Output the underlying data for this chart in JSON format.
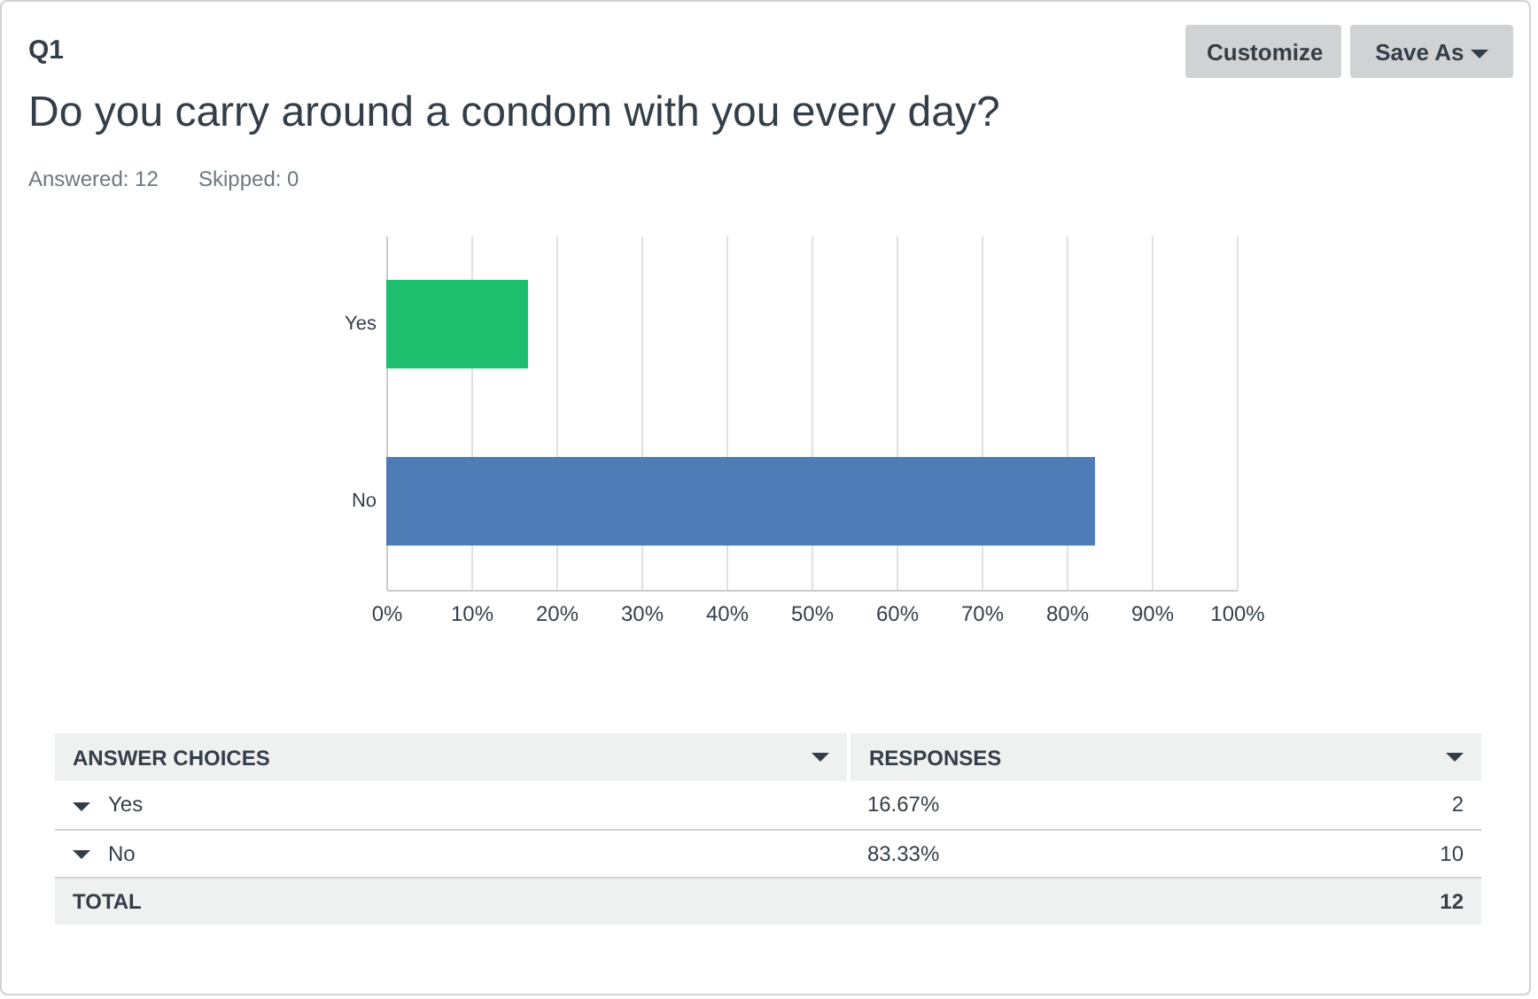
{
  "chart_data": {
    "type": "bar",
    "orientation": "horizontal",
    "title": "Do you carry around a condom with you every day?",
    "categories": [
      "Yes",
      "No"
    ],
    "values": [
      16.67,
      83.33
    ],
    "colors": [
      "#1dbf6e",
      "#4e7cb6"
    ],
    "xlim": [
      0,
      100
    ],
    "xticks": [
      {
        "value": 0,
        "label": "0%"
      },
      {
        "value": 10,
        "label": "10%"
      },
      {
        "value": 20,
        "label": "20%"
      },
      {
        "value": 30,
        "label": "30%"
      },
      {
        "value": 40,
        "label": "40%"
      },
      {
        "value": 50,
        "label": "50%"
      },
      {
        "value": 60,
        "label": "60%"
      },
      {
        "value": 70,
        "label": "70%"
      },
      {
        "value": 80,
        "label": "80%"
      },
      {
        "value": 90,
        "label": "90%"
      },
      {
        "value": 100,
        "label": "100%"
      }
    ],
    "grid": "x",
    "legend": false,
    "annotations": [
      "Q1",
      "Answered: 12",
      "Skipped: 0",
      "Customize",
      "Save As",
      "ANSWER CHOICES",
      "RESPONSES",
      "16.67%",
      "2",
      "83.33%",
      "10",
      "TOTAL",
      "12"
    ]
  }
}
